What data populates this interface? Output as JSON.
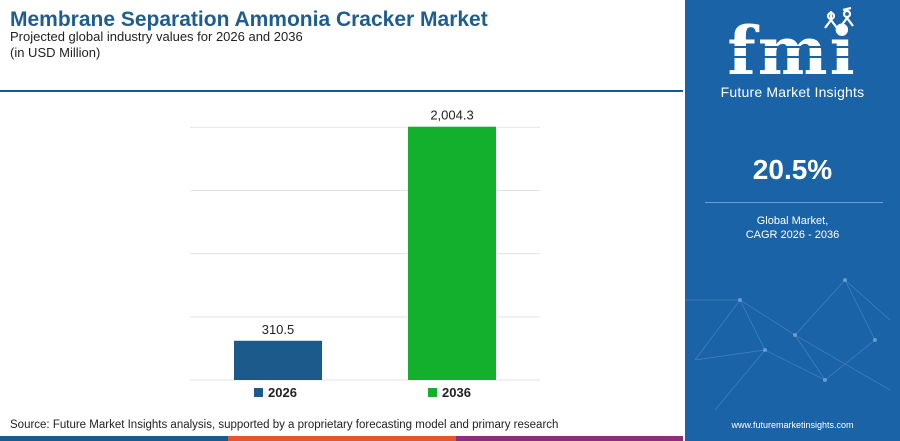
{
  "header": {
    "title": "Membrane Separation Ammonia Cracker Market",
    "subtitle_line1": "Projected global industry values for 2026 and 2036",
    "subtitle_line2": "(in USD Million)"
  },
  "chart_data": {
    "type": "bar",
    "title": "Membrane Separation Ammonia Cracker Market",
    "categories": [
      "2026",
      "2036"
    ],
    "values": [
      310.5,
      2004.3
    ],
    "value_labels": [
      "310.5",
      "2,004.3"
    ],
    "ylim": [
      0,
      2200
    ],
    "grid": true,
    "legend": "bottom-center",
    "colors": [
      "#1d5a8c",
      "#13b02e"
    ]
  },
  "source": "Source: Future Market Insights analysis, supported by a proprietary forecasting model and primary research",
  "sidebar": {
    "logo_letters": "fmi",
    "logo_tagline": "Future Market Insights",
    "cagr_value": "20.5%",
    "cagr_label_line1": "Global Market,",
    "cagr_label_line2": "CAGR 2026 - 2036",
    "website": "www.futuremarketinsights.com",
    "background_color": "#1a63a6"
  },
  "bottom_bar_colors": [
    "#1d5a8c",
    "#e8542c",
    "#8a2e7d"
  ]
}
